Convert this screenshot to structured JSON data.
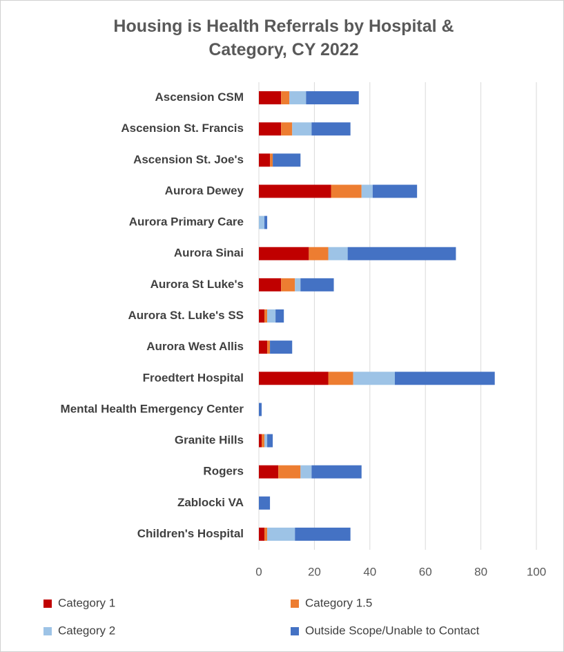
{
  "chart_data": {
    "type": "stacked_bar_horizontal",
    "title": "Housing is Health Referrals by Hospital & Category, CY 2022",
    "categories": [
      "Ascension CSM",
      "Ascension St. Francis",
      "Ascension St. Joe's",
      "Aurora Dewey",
      "Aurora Primary Care",
      "Aurora Sinai",
      "Aurora St Luke's",
      "Aurora St. Luke's SS",
      "Aurora West Allis",
      "Froedtert Hospital",
      "Mental Health Emergency Center",
      "Granite Hills",
      "Rogers",
      "Zablocki VA",
      "Children's Hospital"
    ],
    "series": [
      {
        "name": "Category 1",
        "color": "#c00000",
        "values": [
          8,
          8,
          4,
          26,
          0,
          18,
          8,
          2,
          3,
          25,
          0,
          1,
          7,
          0,
          2
        ]
      },
      {
        "name": "Category 1.5",
        "color": "#ed7d31",
        "values": [
          3,
          4,
          1,
          11,
          0,
          7,
          5,
          1,
          1,
          9,
          0,
          1,
          8,
          0,
          1
        ]
      },
      {
        "name": "Category 2",
        "color": "#9dc3e6",
        "values": [
          6,
          7,
          0,
          4,
          2,
          7,
          2,
          3,
          0,
          15,
          0,
          1,
          4,
          0,
          10
        ]
      },
      {
        "name": "Outside Scope/Unable to Contact",
        "color": "#4472c4",
        "values": [
          19,
          14,
          10,
          16,
          1,
          39,
          12,
          3,
          8,
          36,
          1,
          2,
          18,
          4,
          20
        ]
      }
    ],
    "xlim": [
      0,
      100
    ],
    "xticks": [
      0,
      20,
      40,
      60,
      80,
      100
    ],
    "grid": true
  }
}
